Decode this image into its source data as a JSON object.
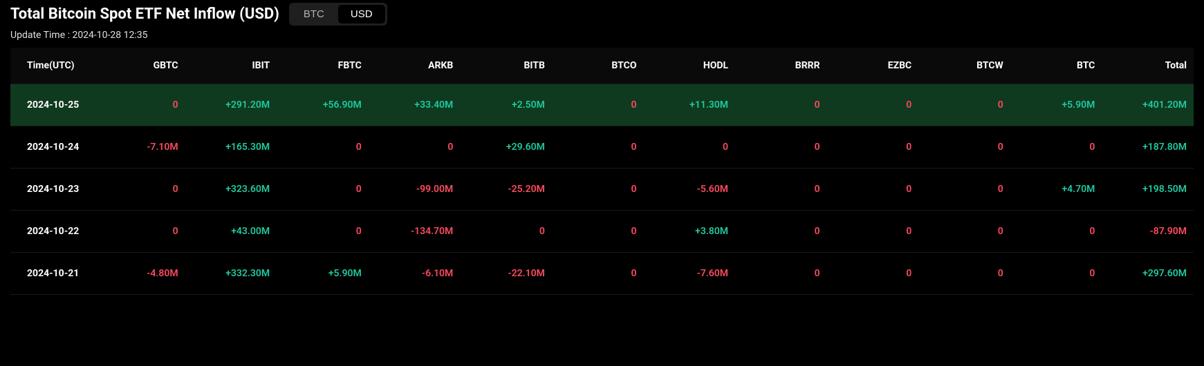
{
  "header": {
    "title": "Total Bitcoin Spot ETF Net Inflow (USD)",
    "toggle": {
      "btc": "BTC",
      "usd": "USD",
      "active": "usd"
    },
    "update_label": "Update Time : 2024-10-28 12:35"
  },
  "colors": {
    "positive": "#1fc9a0",
    "negative": "#ff4a5f",
    "highlight_row_bg": "#0f3a1f",
    "background": "#000000",
    "text": "#ffffff"
  },
  "table": {
    "columns": [
      "Time(UTC)",
      "GBTC",
      "IBIT",
      "FBTC",
      "ARKB",
      "BITB",
      "BTCO",
      "HODL",
      "BRRR",
      "EZBC",
      "BTCW",
      "BTC",
      "Total"
    ],
    "rows": [
      {
        "highlighted": true,
        "cells": [
          "2024-10-25",
          "0",
          "+291.20M",
          "+56.90M",
          "+33.40M",
          "+2.50M",
          "0",
          "+11.30M",
          "0",
          "0",
          "0",
          "+5.90M",
          "+401.20M"
        ]
      },
      {
        "highlighted": false,
        "cells": [
          "2024-10-24",
          "-7.10M",
          "+165.30M",
          "0",
          "0",
          "+29.60M",
          "0",
          "0",
          "0",
          "0",
          "0",
          "0",
          "+187.80M"
        ]
      },
      {
        "highlighted": false,
        "cells": [
          "2024-10-23",
          "0",
          "+323.60M",
          "0",
          "-99.00M",
          "-25.20M",
          "0",
          "-5.60M",
          "0",
          "0",
          "0",
          "+4.70M",
          "+198.50M"
        ]
      },
      {
        "highlighted": false,
        "cells": [
          "2024-10-22",
          "0",
          "+43.00M",
          "0",
          "-134.70M",
          "0",
          "0",
          "+3.80M",
          "0",
          "0",
          "0",
          "0",
          "-87.90M"
        ]
      },
      {
        "highlighted": false,
        "cells": [
          "2024-10-21",
          "-4.80M",
          "+332.30M",
          "+5.90M",
          "-6.10M",
          "-22.10M",
          "0",
          "-7.60M",
          "0",
          "0",
          "0",
          "0",
          "+297.60M"
        ]
      }
    ]
  }
}
